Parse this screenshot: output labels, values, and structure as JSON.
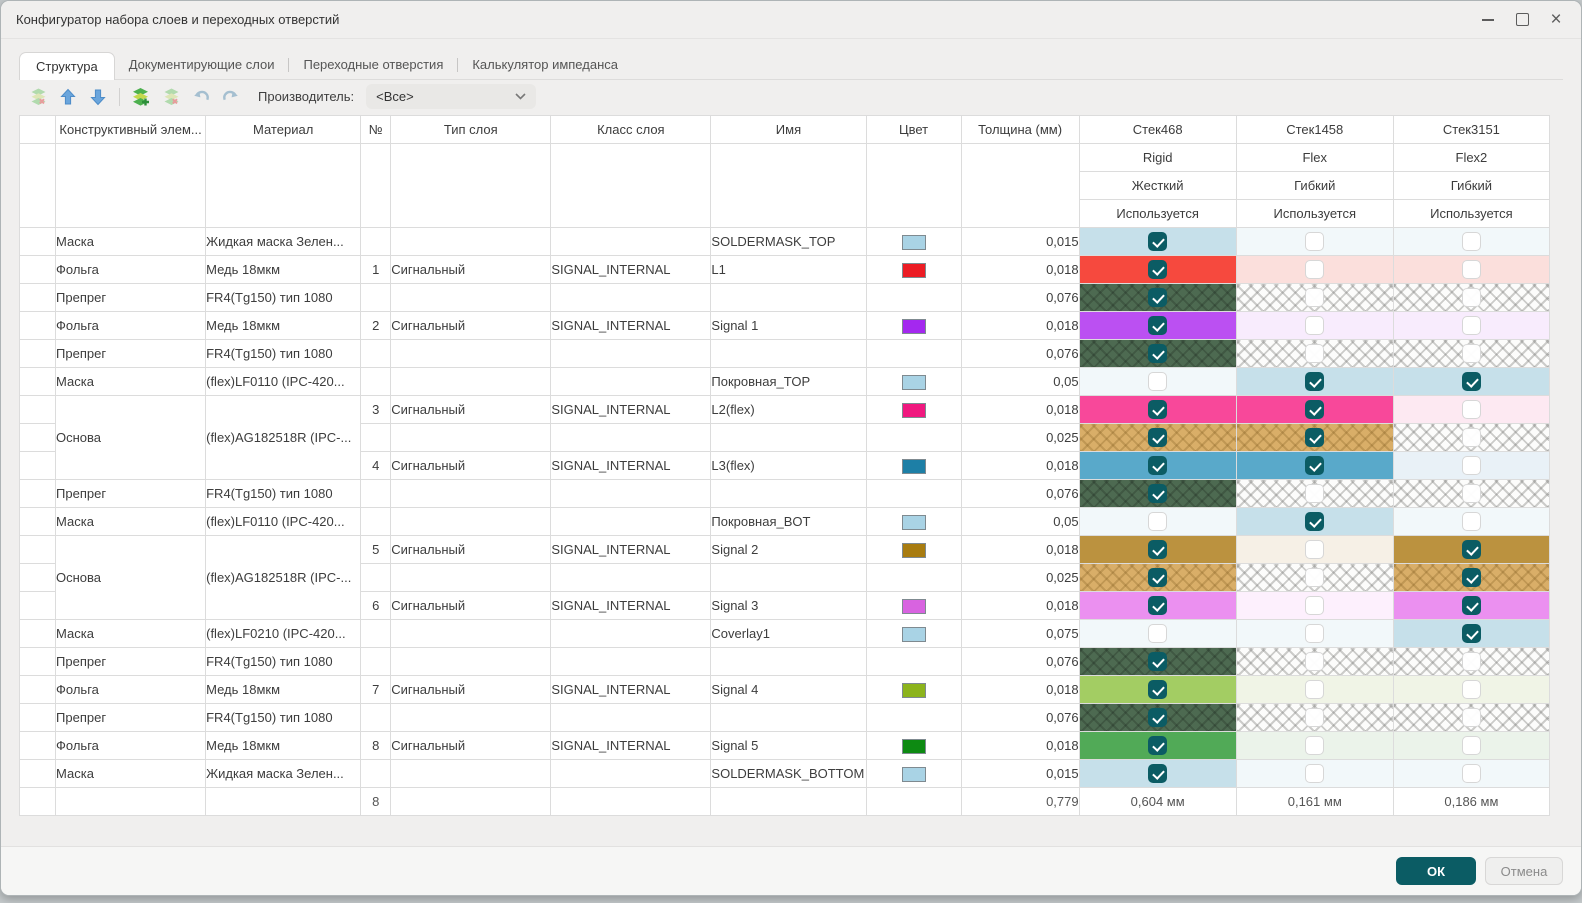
{
  "window": {
    "title": "Конфигуратор набора слоев и переходных отверстий",
    "controls": [
      "minimize",
      "maximize",
      "close"
    ]
  },
  "tabs": [
    {
      "label": "Структура",
      "active": true
    },
    {
      "label": "Документирующие слои",
      "active": false
    },
    {
      "label": "Переходные отверстия",
      "active": false
    },
    {
      "label": "Калькулятор импеданса",
      "active": false
    }
  ],
  "toolbar": {
    "icons": [
      "remove-stack-icon",
      "move-up-icon",
      "move-down-icon",
      "add-layer-icon",
      "remove-layer-icon",
      "undo-icon",
      "redo-icon"
    ],
    "manufacturer_label": "Производитель:",
    "manufacturer_value": "<Все>"
  },
  "table": {
    "columns": [
      "",
      "Конструктивный элем...",
      "Материал",
      "№",
      "Тип слоя",
      "Класс слоя",
      "Имя",
      "Цвет",
      "Толщина (мм)"
    ],
    "stacks": [
      {
        "name": "Стек468",
        "variant": "Rigid",
        "flexibility": "Жесткий",
        "used_label": "Используется",
        "total": "0,604 мм"
      },
      {
        "name": "Стек1458",
        "variant": "Flex",
        "flexibility": "Гибкий",
        "used_label": "Используется",
        "total": "0,161 мм"
      },
      {
        "name": "Стек3151",
        "variant": "Flex2",
        "flexibility": "Гибкий",
        "used_label": "Используется",
        "total": "0,186 мм"
      }
    ],
    "rows": [
      {
        "element": "Маска",
        "material": "Жидкая маска Зелен...",
        "num": "",
        "type": "",
        "layer_class": "",
        "name": "SOLDERMASK_TOP",
        "swatch": "#a9d3e5",
        "thickness": "0,015",
        "stacks": [
          {
            "checked": true,
            "bg": "#c6e0ea"
          },
          {
            "checked": false,
            "bg": "#f2f8fa"
          },
          {
            "checked": false,
            "bg": "#f2f8fa"
          }
        ]
      },
      {
        "element": "Фольга",
        "material": "Медь 18мкм",
        "num": "1",
        "type": "Сигнальный",
        "layer_class": "SIGNAL_INTERNAL",
        "name": "L1",
        "swatch": "#ec1c24",
        "thickness": "0,018",
        "stacks": [
          {
            "checked": true,
            "bg": "#f6493e"
          },
          {
            "checked": false,
            "bg": "#fbdfdc"
          },
          {
            "checked": false,
            "bg": "#fbdfdc"
          }
        ]
      },
      {
        "element": "Препрег",
        "material": "FR4(Tg150) тип 1080",
        "num": "",
        "type": "",
        "layer_class": "",
        "name": "",
        "swatch": null,
        "thickness": "0,076",
        "stacks": [
          {
            "checked": true,
            "hatch": "green"
          },
          {
            "checked": false,
            "hatch": "gray"
          },
          {
            "checked": false,
            "hatch": "gray"
          }
        ]
      },
      {
        "element": "Фольга",
        "material": "Медь 18мкм",
        "num": "2",
        "type": "Сигнальный",
        "layer_class": "SIGNAL_INTERNAL",
        "name": "Signal 1",
        "swatch": "#a428ef",
        "thickness": "0,018",
        "stacks": [
          {
            "checked": true,
            "bg": "#bb50f2"
          },
          {
            "checked": false,
            "bg": "#f8ecfd"
          },
          {
            "checked": false,
            "bg": "#f8ecfd"
          }
        ]
      },
      {
        "element": "Препрег",
        "material": "FR4(Tg150) тип 1080",
        "num": "",
        "type": "",
        "layer_class": "",
        "name": "",
        "swatch": null,
        "thickness": "0,076",
        "stacks": [
          {
            "checked": true,
            "hatch": "green"
          },
          {
            "checked": false,
            "hatch": "gray"
          },
          {
            "checked": false,
            "hatch": "gray"
          }
        ]
      },
      {
        "element": "Маска",
        "material": "(flex)LF0110 (IPC-420...",
        "num": "",
        "type": "",
        "layer_class": "",
        "name": "Покровная_TOP",
        "swatch": "#a9d3e5",
        "thickness": "0,05",
        "stacks": [
          {
            "checked": false,
            "bg": "#f2f8fa"
          },
          {
            "checked": true,
            "bg": "#c6e0ea"
          },
          {
            "checked": true,
            "bg": "#c6e0ea"
          }
        ]
      },
      {
        "element": "Основа",
        "element_span": 3,
        "material": "(flex)AG182518R (IPC-...",
        "material_span": 3,
        "num": "3",
        "type": "Сигнальный",
        "layer_class": "SIGNAL_INTERNAL",
        "name": "L2(flex)",
        "swatch": "#f0187f",
        "thickness": "0,018",
        "stacks": [
          {
            "checked": true,
            "bg": "#f8489a"
          },
          {
            "checked": true,
            "bg": "#f8489a"
          },
          {
            "checked": false,
            "bg": "#fde9f2"
          }
        ]
      },
      {
        "element": null,
        "material": null,
        "num": "",
        "type": "",
        "layer_class": "",
        "name": "",
        "swatch": null,
        "thickness": "0,025",
        "stacks": [
          {
            "checked": true,
            "hatch": "tan"
          },
          {
            "checked": true,
            "hatch": "tan"
          },
          {
            "checked": false,
            "hatch": "gray"
          }
        ]
      },
      {
        "element": null,
        "material": null,
        "num": "4",
        "type": "Сигнальный",
        "layer_class": "SIGNAL_INTERNAL",
        "name": "L3(flex)",
        "swatch": "#1d7fa6",
        "thickness": "0,018",
        "stacks": [
          {
            "checked": true,
            "bg": "#59a9ca"
          },
          {
            "checked": true,
            "bg": "#59a9ca"
          },
          {
            "checked": false,
            "bg": "#e9f1f7"
          }
        ]
      },
      {
        "element": "Препрег",
        "material": "FR4(Tg150) тип 1080",
        "num": "",
        "type": "",
        "layer_class": "",
        "name": "",
        "swatch": null,
        "thickness": "0,076",
        "stacks": [
          {
            "checked": true,
            "hatch": "green"
          },
          {
            "checked": false,
            "hatch": "gray"
          },
          {
            "checked": false,
            "hatch": "gray"
          }
        ]
      },
      {
        "element": "Маска",
        "material": "(flex)LF0110 (IPC-420...",
        "num": "",
        "type": "",
        "layer_class": "",
        "name": "Покровная_BOT",
        "swatch": "#a9d3e5",
        "thickness": "0,05",
        "stacks": [
          {
            "checked": false,
            "bg": "#f2f8fa"
          },
          {
            "checked": true,
            "bg": "#c6e0ea"
          },
          {
            "checked": false,
            "bg": "#f2f8fa"
          }
        ]
      },
      {
        "element": "Основа",
        "element_span": 3,
        "material": "(flex)AG182518R (IPC-...",
        "material_span": 3,
        "num": "5",
        "type": "Сигнальный",
        "layer_class": "SIGNAL_INTERNAL",
        "name": "Signal 2",
        "swatch": "#a87c10",
        "thickness": "0,018",
        "stacks": [
          {
            "checked": true,
            "bg": "#bb923f"
          },
          {
            "checked": false,
            "bg": "#f6f0e6"
          },
          {
            "checked": true,
            "bg": "#bb923f"
          }
        ]
      },
      {
        "element": null,
        "material": null,
        "num": "",
        "type": "",
        "layer_class": "",
        "name": "",
        "swatch": null,
        "thickness": "0,025",
        "stacks": [
          {
            "checked": true,
            "hatch": "tan"
          },
          {
            "checked": false,
            "hatch": "gray"
          },
          {
            "checked": true,
            "hatch": "tan"
          }
        ]
      },
      {
        "element": null,
        "material": null,
        "num": "6",
        "type": "Сигнальный",
        "layer_class": "SIGNAL_INTERNAL",
        "name": "Signal 3",
        "swatch": "#d863e0",
        "thickness": "0,018",
        "stacks": [
          {
            "checked": true,
            "bg": "#eb90f0"
          },
          {
            "checked": false,
            "bg": "#fdf0fd"
          },
          {
            "checked": true,
            "bg": "#eb90f0"
          }
        ]
      },
      {
        "element": "Маска",
        "material": "(flex)LF0210 (IPC-420...",
        "num": "",
        "type": "",
        "layer_class": "",
        "name": "Coverlay1",
        "swatch": "#a9d3e5",
        "thickness": "0,075",
        "stacks": [
          {
            "checked": false,
            "bg": "#f2f8fa"
          },
          {
            "checked": false,
            "bg": "#f2f8fa"
          },
          {
            "checked": true,
            "bg": "#c6e0ea"
          }
        ]
      },
      {
        "element": "Препрег",
        "material": "FR4(Tg150) тип 1080",
        "num": "",
        "type": "",
        "layer_class": "",
        "name": "",
        "swatch": null,
        "thickness": "0,076",
        "stacks": [
          {
            "checked": true,
            "hatch": "green"
          },
          {
            "checked": false,
            "hatch": "gray"
          },
          {
            "checked": false,
            "hatch": "gray"
          }
        ]
      },
      {
        "element": "Фольга",
        "material": "Медь 18мкм",
        "num": "7",
        "type": "Сигнальный",
        "layer_class": "SIGNAL_INTERNAL",
        "name": "Signal 4",
        "swatch": "#8cb41c",
        "thickness": "0,018",
        "stacks": [
          {
            "checked": true,
            "bg": "#a3cd63"
          },
          {
            "checked": false,
            "bg": "#f0f4e6"
          },
          {
            "checked": false,
            "bg": "#f0f4e6"
          }
        ]
      },
      {
        "element": "Препрег",
        "material": "FR4(Tg150) тип 1080",
        "num": "",
        "type": "",
        "layer_class": "",
        "name": "",
        "swatch": null,
        "thickness": "0,076",
        "stacks": [
          {
            "checked": true,
            "hatch": "green"
          },
          {
            "checked": false,
            "hatch": "gray"
          },
          {
            "checked": false,
            "hatch": "gray"
          }
        ]
      },
      {
        "element": "Фольга",
        "material": "Медь 18мкм",
        "num": "8",
        "type": "Сигнальный",
        "layer_class": "SIGNAL_INTERNAL",
        "name": "Signal 5",
        "swatch": "#0d8a12",
        "thickness": "0,018",
        "stacks": [
          {
            "checked": true,
            "bg": "#51aa57"
          },
          {
            "checked": false,
            "bg": "#ebf3ea"
          },
          {
            "checked": false,
            "bg": "#ebf3ea"
          }
        ]
      },
      {
        "element": "Маска",
        "material": "Жидкая маска Зелен...",
        "num": "",
        "type": "",
        "layer_class": "",
        "name": "SOLDERMASK_BOTTOM",
        "swatch": "#a9d3e5",
        "thickness": "0,015",
        "stacks": [
          {
            "checked": true,
            "bg": "#c6e0ea"
          },
          {
            "checked": false,
            "bg": "#f2f8fa"
          },
          {
            "checked": false,
            "bg": "#f2f8fa"
          }
        ]
      }
    ],
    "totals": {
      "num": "8",
      "thickness": "0,779"
    }
  },
  "footer": {
    "ok_label": "ОК",
    "cancel_label": "Отмена"
  },
  "colors": {
    "accent": "#0b5c64",
    "checkbox_checked": "#0b5c64",
    "prepreg_hatch": "#4d6a51",
    "core_hatch": "#d9ae68"
  }
}
